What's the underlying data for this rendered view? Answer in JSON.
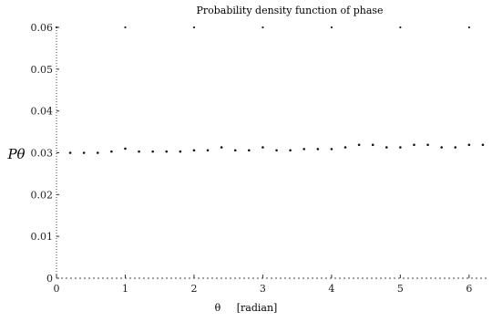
{
  "chart_data": {
    "type": "scatter",
    "title": "Probability density function of phase",
    "xlabel": "θ",
    "xlabel_unit": "[radian]",
    "ylabel": "Pθ",
    "xlim": [
      0,
      6.28
    ],
    "ylim": [
      0,
      0.06
    ],
    "x_ticks": [
      0,
      1,
      2,
      3,
      4,
      5,
      6
    ],
    "x_tick_labels": [
      "0",
      "1",
      "2",
      "3",
      "4",
      "5",
      "6"
    ],
    "y_ticks": [
      0,
      0.01,
      0.02,
      0.03,
      0.04,
      0.05,
      0.06
    ],
    "y_tick_labels": [
      "0",
      "0.01",
      "0.02",
      "0.03",
      "0.04",
      "0.05",
      "0.06"
    ],
    "grid": false,
    "point_color": "#111111",
    "series": [
      {
        "x": [
          0.2,
          0.4,
          0.6,
          0.8,
          1.0,
          1.2,
          1.4,
          1.6,
          1.8,
          2.0,
          2.2,
          2.4,
          2.6,
          2.8,
          3.0,
          3.2,
          3.4,
          3.6,
          3.8,
          4.0,
          4.2,
          4.4,
          4.6,
          4.8,
          5.0,
          5.2,
          5.4,
          5.6,
          5.8,
          6.0,
          6.2
        ],
        "y": [
          0.03,
          0.03,
          0.03,
          0.0303,
          0.031,
          0.0303,
          0.0303,
          0.0303,
          0.0303,
          0.0306,
          0.0306,
          0.0313,
          0.0306,
          0.0306,
          0.0313,
          0.0306,
          0.0306,
          0.0309,
          0.0309,
          0.0309,
          0.0313,
          0.0319,
          0.0319,
          0.0313,
          0.0313,
          0.0319,
          0.0319,
          0.0313,
          0.0313,
          0.0319,
          0.0319
        ]
      }
    ]
  }
}
